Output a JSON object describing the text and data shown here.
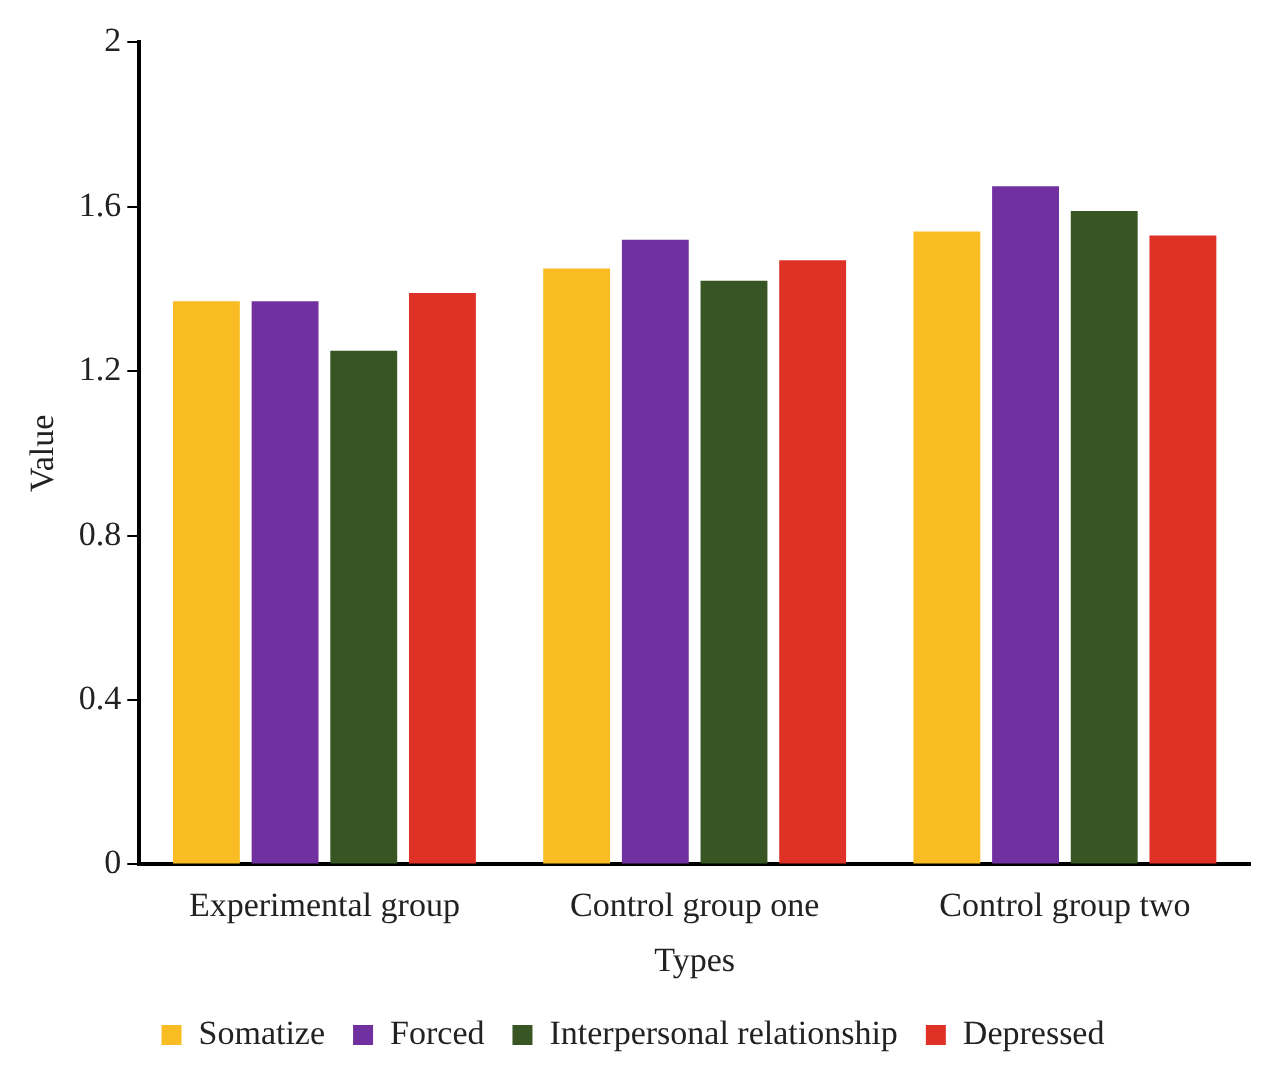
{
  "chart_data": {
    "type": "bar",
    "xlabel": "Types",
    "ylabel": "Value",
    "categories": [
      "Experimental group",
      "Control group one",
      "Control group two"
    ],
    "series": [
      {
        "name": "Somatize",
        "color": "#f9bc23",
        "values": [
          1.37,
          1.45,
          1.54
        ]
      },
      {
        "name": "Forced",
        "color": "#7030a0",
        "values": [
          1.37,
          1.52,
          1.65
        ]
      },
      {
        "name": "Interpersonal relationship",
        "color": "#375623",
        "values": [
          1.25,
          1.42,
          1.59
        ]
      },
      {
        "name": "Depressed",
        "color": "#e03127",
        "values": [
          1.39,
          1.47,
          1.53
        ]
      }
    ],
    "ylim": [
      0,
      2
    ],
    "yticks": [
      0,
      0.4,
      0.8,
      1.2,
      1.6,
      2
    ],
    "grid": false,
    "legend": "bottom"
  }
}
